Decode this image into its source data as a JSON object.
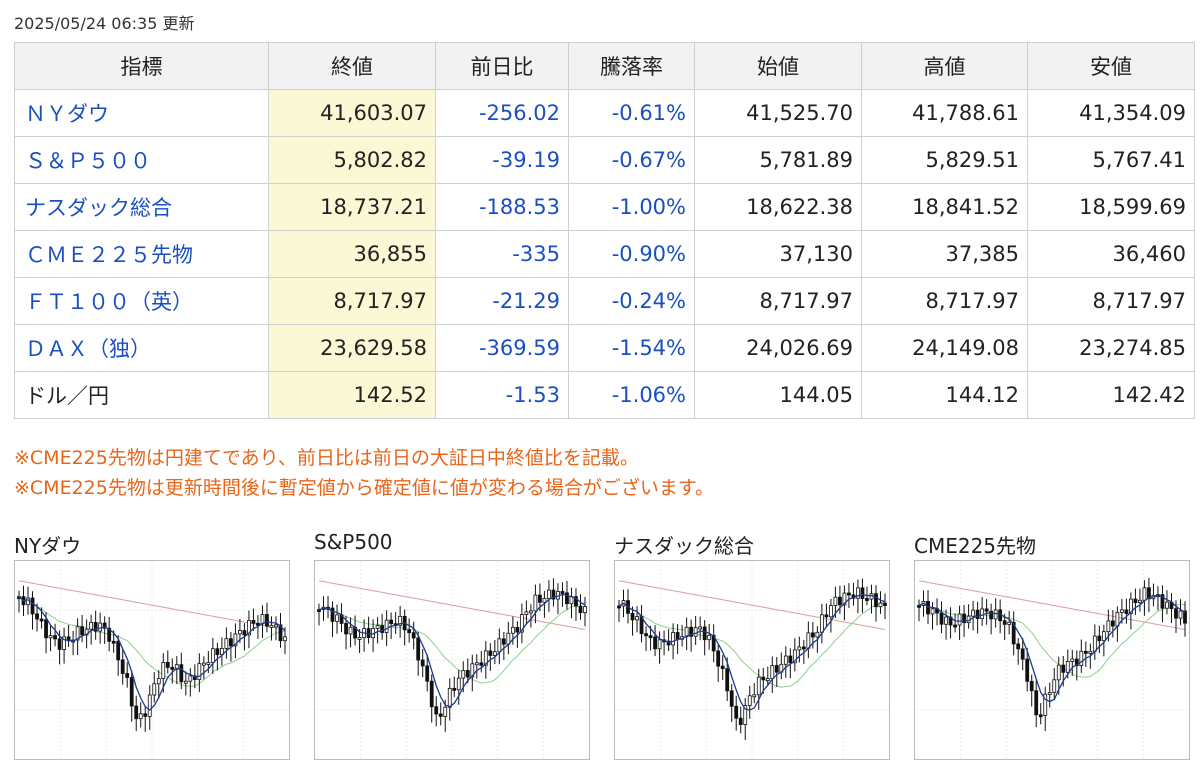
{
  "updated": "2025/05/24 06:35 更新",
  "table": {
    "headers": [
      "指標",
      "終値",
      "前日比",
      "騰落率",
      "始値",
      "高値",
      "安値"
    ],
    "rows": [
      {
        "name": "ＮＹダウ",
        "link": true,
        "close": "41,603.07",
        "change": "-256.02",
        "pct": "-0.61%",
        "open": "41,525.70",
        "high": "41,788.61",
        "low": "41,354.09"
      },
      {
        "name": "Ｓ＆Ｐ５００",
        "link": true,
        "close": "5,802.82",
        "change": "-39.19",
        "pct": "-0.67%",
        "open": "5,781.89",
        "high": "5,829.51",
        "low": "5,767.41"
      },
      {
        "name": "ナスダック総合",
        "link": true,
        "close": "18,737.21",
        "change": "-188.53",
        "pct": "-1.00%",
        "open": "18,622.38",
        "high": "18,841.52",
        "low": "18,599.69"
      },
      {
        "name": "ＣＭＥ２２５先物",
        "link": true,
        "close": "36,855",
        "change": "-335",
        "pct": "-0.90%",
        "open": "37,130",
        "high": "37,385",
        "low": "36,460"
      },
      {
        "name": "ＦＴ１００（英）",
        "link": true,
        "close": "8,717.97",
        "change": "-21.29",
        "pct": "-0.24%",
        "open": "8,717.97",
        "high": "8,717.97",
        "low": "8,717.97"
      },
      {
        "name": "ＤＡＸ（独）",
        "link": true,
        "close": "23,629.58",
        "change": "-369.59",
        "pct": "-1.54%",
        "open": "24,026.69",
        "high": "24,149.08",
        "low": "23,274.85"
      },
      {
        "name": "ドル／円",
        "link": false,
        "close": "142.52",
        "change": "-1.53",
        "pct": "-1.06%",
        "open": "144.05",
        "high": "144.12",
        "low": "142.42"
      }
    ]
  },
  "notes": [
    "※CME225先物は円建てであり、前日比は前日の大証日中終値比を記載。",
    "※CME225先物は更新時間後に暫定値から確定値に値が変わる場合がございます。"
  ],
  "charts": [
    {
      "title": "NYダウ"
    },
    {
      "title": "S&P500"
    },
    {
      "title": "ナスダック総合"
    },
    {
      "title": "CME225先物"
    }
  ],
  "colors": {
    "link": "#1a4fbf",
    "note": "#e8651a",
    "close_bg": "#fbf8d6",
    "header_bg": "#f2f2f2",
    "ma_short": "#1f3a8a",
    "ma_mid": "#8fcf8f",
    "ma_long": "#d9a0a0"
  }
}
